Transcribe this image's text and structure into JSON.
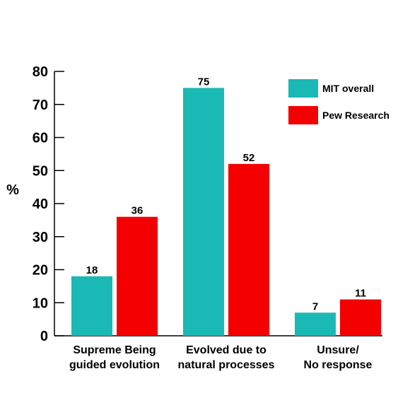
{
  "chart_data": {
    "type": "bar",
    "categories": [
      [
        "Supreme Being",
        "guided evolution"
      ],
      [
        "Evolved due to",
        "natural processes"
      ],
      [
        "Unsure/",
        "No response"
      ]
    ],
    "series": [
      {
        "name": "MIT overall",
        "values": [
          18,
          75,
          7
        ],
        "color": "#1ab9b5"
      },
      {
        "name": "Pew Research",
        "values": [
          36,
          52,
          11
        ],
        "color": "#f50000"
      }
    ],
    "ylabel": "%",
    "xlabel": "",
    "ylim": [
      0,
      80
    ],
    "yticks": [
      0,
      10,
      20,
      30,
      40,
      50,
      60,
      70,
      80
    ],
    "grid": false,
    "legend_position": "top-right"
  }
}
